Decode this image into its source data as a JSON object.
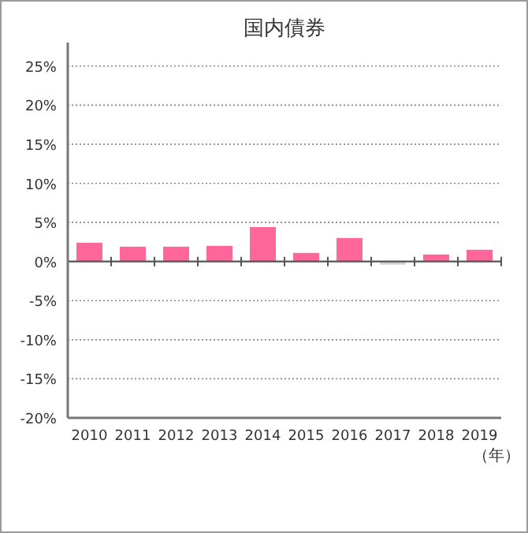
{
  "chart_data": {
    "type": "bar",
    "title": "国内債券",
    "xlabel": "（年）",
    "categories": [
      "2010",
      "2011",
      "2012",
      "2013",
      "2014",
      "2015",
      "2016",
      "2017",
      "2018",
      "2019"
    ],
    "values": [
      2.4,
      1.9,
      1.9,
      2.0,
      4.4,
      1.1,
      3.0,
      -0.4,
      0.9,
      1.5
    ],
    "colors": [
      "#ff6699",
      "#ff6699",
      "#ff6699",
      "#ff6699",
      "#ff6699",
      "#ff6699",
      "#ff6699",
      "#d0d0d0",
      "#ff6699",
      "#ff6699"
    ],
    "ylim": [
      -20,
      28
    ],
    "yticks": [
      {
        "value": -20,
        "label": "-20%"
      },
      {
        "value": -15,
        "label": "-15%"
      },
      {
        "value": -10,
        "label": "-10%"
      },
      {
        "value": -5,
        "label": "-5%"
      },
      {
        "value": 0,
        "label": "0%"
      },
      {
        "value": 5,
        "label": "5%"
      },
      {
        "value": 10,
        "label": "10%"
      },
      {
        "value": 15,
        "label": "15%"
      },
      {
        "value": 20,
        "label": "20%"
      },
      {
        "value": 25,
        "label": "25%"
      }
    ],
    "grid": "y"
  }
}
